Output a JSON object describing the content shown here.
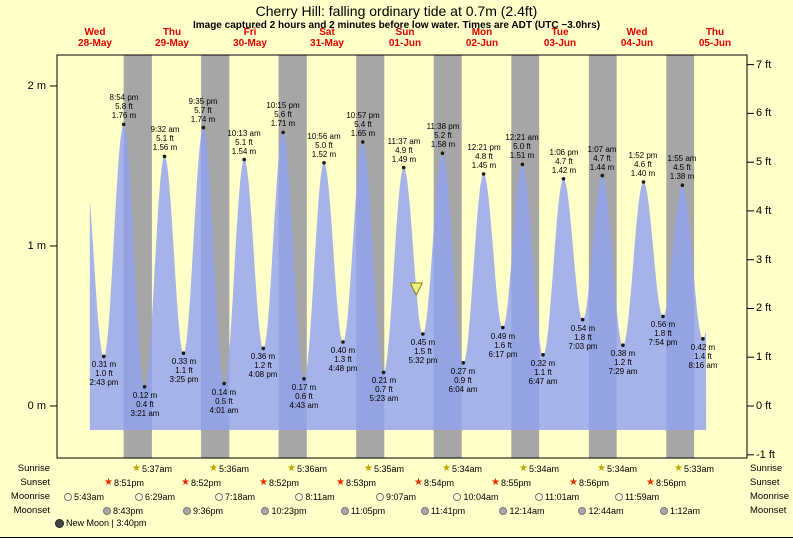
{
  "title": "Cherry Hill: falling ordinary tide at 0.7m (2.4ft)",
  "subtitle": "Image captured 2 hours and 2 minutes before low water. Times are ADT (UTC −3.0hrs)",
  "days": [
    {
      "name": "Wed",
      "date": "28-May"
    },
    {
      "name": "Thu",
      "date": "29-May"
    },
    {
      "name": "Fri",
      "date": "30-May"
    },
    {
      "name": "Sat",
      "date": "31-May"
    },
    {
      "name": "Sun",
      "date": "01-Jun"
    },
    {
      "name": "Mon",
      "date": "02-Jun"
    },
    {
      "name": "Tue",
      "date": "03-Jun"
    },
    {
      "name": "Wed",
      "date": "04-Jun"
    },
    {
      "name": "Thu",
      "date": "05-Jun"
    }
  ],
  "axis": {
    "left": {
      "labels": [
        "2 m",
        "1 m",
        "0 m"
      ],
      "values_m": [
        2,
        1,
        0
      ]
    },
    "right": {
      "labels": [
        "7 ft",
        "6 ft",
        "5 ft",
        "4 ft",
        "3 ft",
        "2 ft",
        "1 ft",
        "0 ft",
        "-1 ft"
      ],
      "values_ft": [
        7,
        6,
        5,
        4,
        3,
        2,
        1,
        0,
        -1
      ]
    }
  },
  "chart_data": {
    "type": "area",
    "title": "Cherry Hill tide height",
    "x_axis": "time, Wed 28-May through Thu 05-Jun",
    "y_axis_left": "height (m)",
    "y_axis_right": "height (ft)",
    "ylim_m": [
      -0.33,
      2.2
    ],
    "night_shading": "grey bands from sunset to sunrise",
    "current_level_marker": {
      "height_m": 0.7,
      "day": 4,
      "time": "3:30 pm"
    },
    "edge_anchors": {
      "before": {
        "day": 0,
        "time": "8:30 am",
        "height_m": 1.55
      },
      "after": {
        "day": 8,
        "time": "2:30 pm",
        "height_m": 1.45
      }
    },
    "extremes": [
      {
        "day": 0,
        "time": "2:43 pm",
        "kind": "low",
        "height_m": "0.31",
        "height_ft": "1.0"
      },
      {
        "day": 0,
        "time": "8:54 pm",
        "kind": "high",
        "height_m": "1.76",
        "height_ft": "5.8"
      },
      {
        "day": 1,
        "time": "3:21 am",
        "kind": "low",
        "height_m": "0.12",
        "height_ft": "0.4"
      },
      {
        "day": 1,
        "time": "9:32 am",
        "kind": "high",
        "height_m": "1.56",
        "height_ft": "5.1"
      },
      {
        "day": 1,
        "time": "3:25 pm",
        "kind": "low",
        "height_m": "0.33",
        "height_ft": "1.1"
      },
      {
        "day": 1,
        "time": "9:35 pm",
        "kind": "high",
        "height_m": "1.74",
        "height_ft": "5.7"
      },
      {
        "day": 2,
        "time": "4:01 am",
        "kind": "low",
        "height_m": "0.14",
        "height_ft": "0.5"
      },
      {
        "day": 2,
        "time": "10:13 am",
        "kind": "high",
        "height_m": "1.54",
        "height_ft": "5.1"
      },
      {
        "day": 2,
        "time": "4:08 pm",
        "kind": "low",
        "height_m": "0.36",
        "height_ft": "1.2"
      },
      {
        "day": 2,
        "time": "10:15 pm",
        "kind": "high",
        "height_m": "1.71",
        "height_ft": "5.6"
      },
      {
        "day": 3,
        "time": "4:43 am",
        "kind": "low",
        "height_m": "0.17",
        "height_ft": "0.6"
      },
      {
        "day": 3,
        "time": "10:56 am",
        "kind": "high",
        "height_m": "1.52",
        "height_ft": "5.0"
      },
      {
        "day": 3,
        "time": "4:48 pm",
        "kind": "low",
        "height_m": "0.40",
        "height_ft": "1.3"
      },
      {
        "day": 3,
        "time": "10:57 pm",
        "kind": "high",
        "height_m": "1.65",
        "height_ft": "5.4"
      },
      {
        "day": 4,
        "time": "5:23 am",
        "kind": "low",
        "height_m": "0.21",
        "height_ft": "0.7"
      },
      {
        "day": 4,
        "time": "11:37 am",
        "kind": "high",
        "height_m": "1.49",
        "height_ft": "4.9"
      },
      {
        "day": 4,
        "time": "5:32 pm",
        "kind": "low",
        "height_m": "0.45",
        "height_ft": "1.5"
      },
      {
        "day": 4,
        "time": "11:38 pm",
        "kind": "high",
        "height_m": "1.58",
        "height_ft": "5.2"
      },
      {
        "day": 5,
        "time": "6:04 am",
        "kind": "low",
        "height_m": "0.27",
        "height_ft": "0.9"
      },
      {
        "day": 5,
        "time": "12:21 pm",
        "kind": "high",
        "height_m": "1.45",
        "height_ft": "4.8"
      },
      {
        "day": 5,
        "time": "6:17 pm",
        "kind": "low",
        "height_m": "0.49",
        "height_ft": "1.6"
      },
      {
        "day": 6,
        "time": "12:21 am",
        "kind": "high",
        "height_m": "1.51",
        "height_ft": "5.0"
      },
      {
        "day": 6,
        "time": "6:47 am",
        "kind": "low",
        "height_m": "0.32",
        "height_ft": "1.1"
      },
      {
        "day": 6,
        "time": "1:06 pm",
        "kind": "high",
        "height_m": "1.42",
        "height_ft": "4.7"
      },
      {
        "day": 6,
        "time": "7:03 pm",
        "kind": "low",
        "height_m": "0.54",
        "height_ft": "1.8"
      },
      {
        "day": 7,
        "time": "1:07 am",
        "kind": "high",
        "height_m": "1.44",
        "height_ft": "4.7"
      },
      {
        "day": 7,
        "time": "7:29 am",
        "kind": "low",
        "height_m": "0.38",
        "height_ft": "1.2"
      },
      {
        "day": 7,
        "time": "1:52 pm",
        "kind": "high",
        "height_m": "1.40",
        "height_ft": "4.6"
      },
      {
        "day": 7,
        "time": "7:54 pm",
        "kind": "low",
        "height_m": "0.56",
        "height_ft": "1.8"
      },
      {
        "day": 8,
        "time": "1:55 am",
        "kind": "high",
        "height_m": "1.38",
        "height_ft": "4.5"
      },
      {
        "day": 8,
        "time": "8:16 am",
        "kind": "low",
        "height_m": "0.42",
        "height_ft": "1.4"
      }
    ]
  },
  "almanac": {
    "rows": [
      {
        "id": "sunrise",
        "label": "Sunrise",
        "times": [
          "5:37am",
          "5:36am",
          "5:36am",
          "5:35am",
          "5:34am",
          "5:34am",
          "5:34am",
          "5:33am"
        ]
      },
      {
        "id": "sunset",
        "label": "Sunset",
        "times": [
          "8:51pm",
          "8:52pm",
          "8:52pm",
          "8:53pm",
          "8:54pm",
          "8:55pm",
          "8:56pm",
          "8:56pm"
        ]
      },
      {
        "id": "moonrise",
        "label": "Moonrise",
        "times": [
          "5:43am",
          "6:29am",
          "7:18am",
          "8:11am",
          "9:07am",
          "10:04am",
          "11:01am",
          "11:59am"
        ]
      },
      {
        "id": "moonset",
        "label": "Moonset",
        "times": [
          "8:43pm",
          "9:36pm",
          "10:23pm",
          "11:05pm",
          "11:41pm",
          "12:14am",
          "12:44am",
          "1:12am"
        ]
      }
    ],
    "moon_phase": "New Moon | 3:40pm"
  },
  "colors": {
    "background": "#ffffca",
    "night_band": "#a6a6a6",
    "tide_fill": "#93a2ef",
    "day_label": "#e00000",
    "sunrise_star": "#bfa500",
    "sunset_star": "#e03000",
    "moonrise_fill": "#ffffd6",
    "moonset_fill": "#a9a9a9",
    "new_moon_fill": "#454545",
    "marker_fill": "#f0f07c",
    "marker_stroke": "#80802a"
  }
}
